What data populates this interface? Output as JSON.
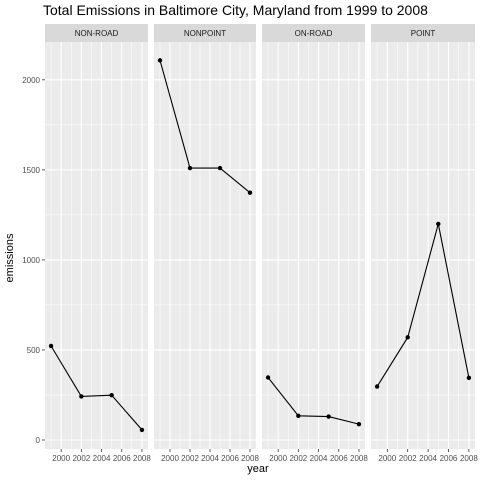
{
  "colors": {
    "panel_background": "#ebebeb",
    "strip_background": "#d9d9d9",
    "gridline": "#ffffff",
    "line": "#000000",
    "point": "#000000",
    "tick_text": "#4d4d4d"
  },
  "chart_data": {
    "type": "line",
    "title": "Total Emissions in Baltimore City, Maryland from 1999 to 2008",
    "xlabel": "year",
    "ylabel": "emissions",
    "xlim": [
      1998.4,
      2008.6
    ],
    "ylim": [
      -50,
      2210
    ],
    "x_ticks": [
      2000,
      2002,
      2004,
      2006,
      2008
    ],
    "x_tick_labels": [
      "2000",
      "2002",
      "2004",
      "2006",
      "2008"
    ],
    "y_ticks": [
      0,
      500,
      1000,
      1500,
      2000
    ],
    "y_tick_labels": [
      "0",
      "500",
      "1000",
      "1500",
      "2000"
    ],
    "grid": true,
    "facets": [
      {
        "name": "NON-ROAD",
        "x": [
          1999,
          2002,
          2005,
          2008
        ],
        "values": [
          522,
          242,
          249,
          56
        ]
      },
      {
        "name": "NONPOINT",
        "x": [
          1999,
          2002,
          2005,
          2008
        ],
        "values": [
          2108,
          1510,
          1510,
          1373
        ]
      },
      {
        "name": "ON-ROAD",
        "x": [
          1999,
          2002,
          2005,
          2008
        ],
        "values": [
          347,
          134,
          130,
          88
        ]
      },
      {
        "name": "POINT",
        "x": [
          1999,
          2002,
          2005,
          2008
        ],
        "values": [
          297,
          570,
          1200,
          345
        ]
      }
    ]
  }
}
